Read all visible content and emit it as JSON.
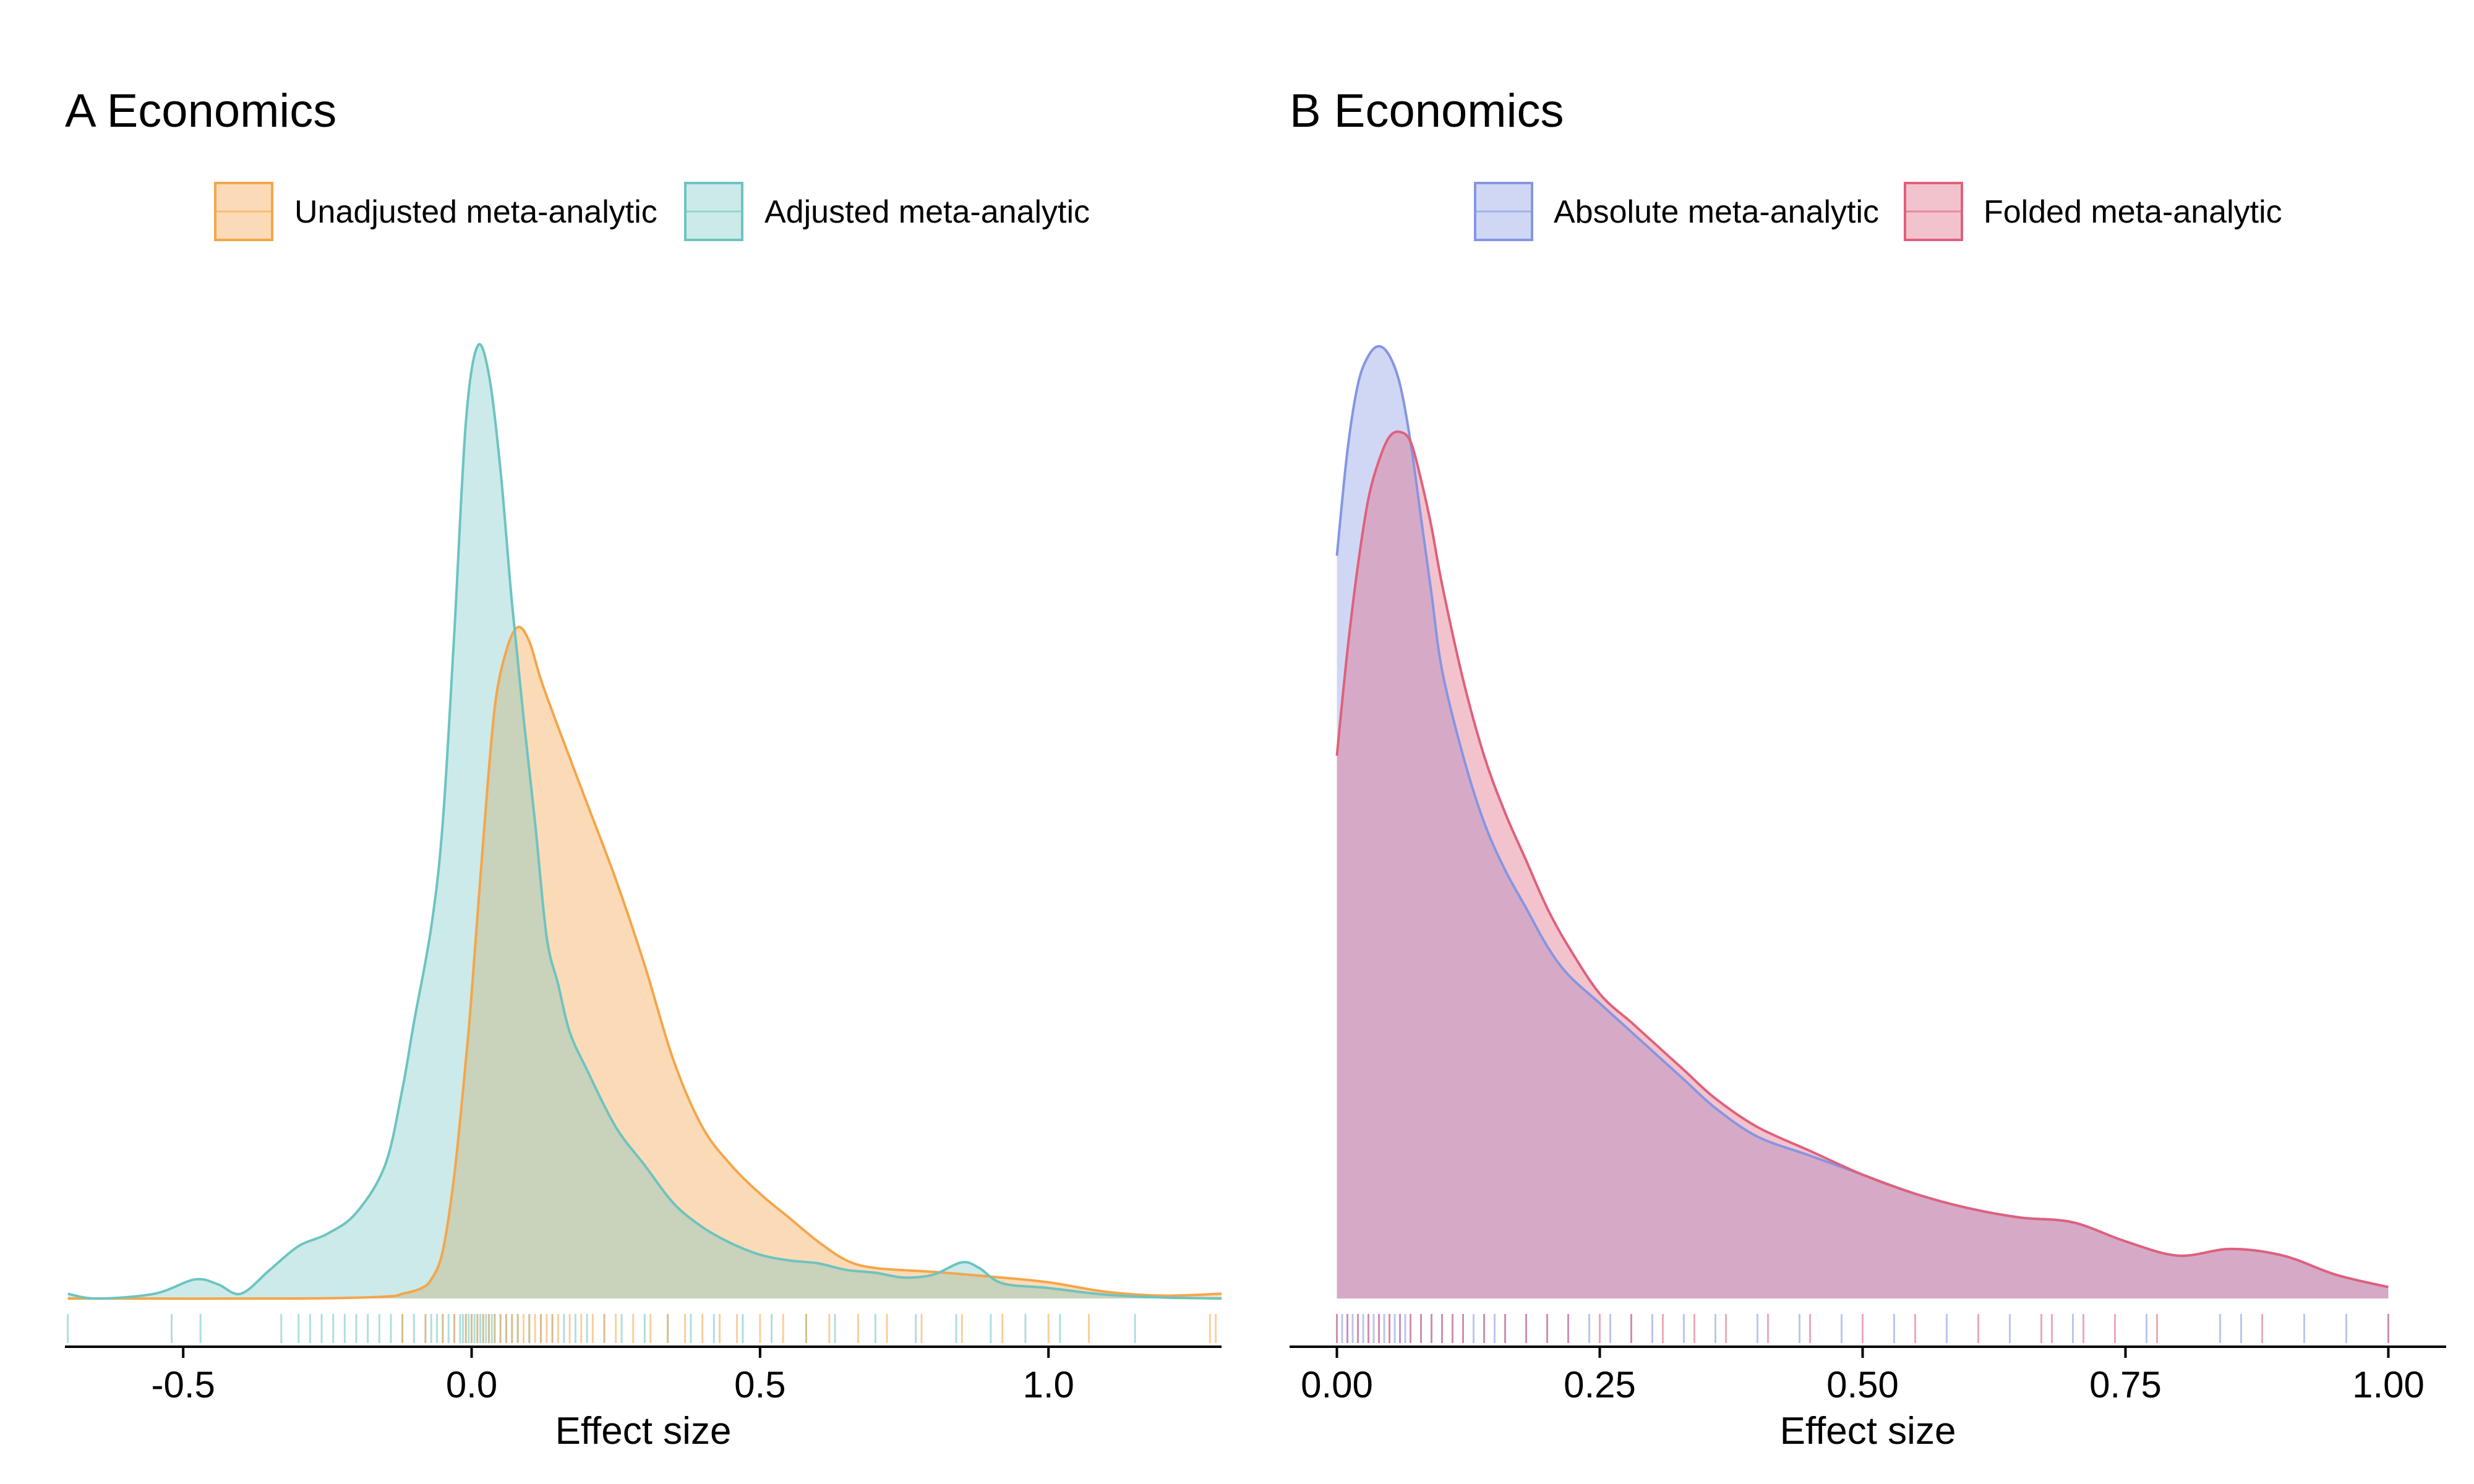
{
  "colors": {
    "unadjusted": "#F5A54A",
    "adjusted": "#6CC4C0",
    "absolute": "#8496E3",
    "folded": "#E0607B"
  },
  "chart_data": [
    {
      "type": "area",
      "subtype": "density-with-rug",
      "title": "A Economics",
      "xlabel": "Effect size",
      "ylabel": "",
      "xlim": [
        -0.705,
        1.3
      ],
      "ylim": [
        0,
        1
      ],
      "x_ticks": [
        -0.5,
        0.0,
        0.5,
        1.0
      ],
      "x_tick_labels": [
        "-0.5",
        "0.0",
        "0.5",
        "1.0"
      ],
      "y_axis_shown": false,
      "grid": false,
      "legend": {
        "position": "top",
        "entries": [
          "Unadjusted meta-analytic",
          "Adjusted meta-analytic"
        ]
      },
      "series": [
        {
          "name": "Unadjusted meta-analytic",
          "color_key": "unadjusted",
          "fill_opacity": 0.4,
          "points": [
            [
              -0.7,
              0.0
            ],
            [
              -0.3,
              0.0
            ],
            [
              -0.15,
              0.002
            ],
            [
              -0.12,
              0.005
            ],
            [
              -0.09,
              0.01
            ],
            [
              -0.07,
              0.02
            ],
            [
              -0.05,
              0.05
            ],
            [
              -0.03,
              0.13
            ],
            [
              -0.01,
              0.25
            ],
            [
              0.0,
              0.32
            ],
            [
              0.02,
              0.48
            ],
            [
              0.04,
              0.62
            ],
            [
              0.06,
              0.68
            ],
            [
              0.08,
              0.705
            ],
            [
              0.1,
              0.69
            ],
            [
              0.12,
              0.65
            ],
            [
              0.15,
              0.6
            ],
            [
              0.2,
              0.52
            ],
            [
              0.25,
              0.44
            ],
            [
              0.3,
              0.35
            ],
            [
              0.35,
              0.25
            ],
            [
              0.4,
              0.18
            ],
            [
              0.45,
              0.14
            ],
            [
              0.5,
              0.11
            ],
            [
              0.55,
              0.085
            ],
            [
              0.6,
              0.06
            ],
            [
              0.65,
              0.04
            ],
            [
              0.7,
              0.032
            ],
            [
              0.8,
              0.028
            ],
            [
              0.9,
              0.023
            ],
            [
              1.0,
              0.017
            ],
            [
              1.1,
              0.007
            ],
            [
              1.2,
              0.003
            ],
            [
              1.3,
              0.005
            ]
          ]
        },
        {
          "name": "Adjusted meta-analytic",
          "color_key": "adjusted",
          "fill_opacity": 0.35,
          "points": [
            [
              -0.7,
              0.005
            ],
            [
              -0.65,
              0.0
            ],
            [
              -0.55,
              0.005
            ],
            [
              -0.48,
              0.02
            ],
            [
              -0.44,
              0.015
            ],
            [
              -0.4,
              0.005
            ],
            [
              -0.35,
              0.03
            ],
            [
              -0.3,
              0.055
            ],
            [
              -0.25,
              0.068
            ],
            [
              -0.2,
              0.09
            ],
            [
              -0.15,
              0.14
            ],
            [
              -0.12,
              0.22
            ],
            [
              -0.1,
              0.29
            ],
            [
              -0.07,
              0.39
            ],
            [
              -0.05,
              0.5
            ],
            [
              -0.03,
              0.7
            ],
            [
              -0.01,
              0.92
            ],
            [
              0.01,
              1.0
            ],
            [
              0.03,
              0.97
            ],
            [
              0.05,
              0.87
            ],
            [
              0.07,
              0.73
            ],
            [
              0.09,
              0.61
            ],
            [
              0.11,
              0.5
            ],
            [
              0.13,
              0.38
            ],
            [
              0.15,
              0.33
            ],
            [
              0.17,
              0.28
            ],
            [
              0.2,
              0.24
            ],
            [
              0.25,
              0.18
            ],
            [
              0.3,
              0.14
            ],
            [
              0.35,
              0.1
            ],
            [
              0.4,
              0.075
            ],
            [
              0.45,
              0.058
            ],
            [
              0.5,
              0.046
            ],
            [
              0.55,
              0.04
            ],
            [
              0.6,
              0.037
            ],
            [
              0.65,
              0.03
            ],
            [
              0.7,
              0.027
            ],
            [
              0.75,
              0.022
            ],
            [
              0.8,
              0.025
            ],
            [
              0.85,
              0.038
            ],
            [
              0.88,
              0.032
            ],
            [
              0.92,
              0.016
            ],
            [
              1.0,
              0.011
            ],
            [
              1.1,
              0.004
            ],
            [
              1.2,
              0.001
            ],
            [
              1.3,
              0.0
            ]
          ]
        }
      ],
      "rug": [
        {
          "series": "Adjusted meta-analytic",
          "values": [
            -0.7,
            -0.52,
            -0.47,
            -0.33,
            -0.3,
            -0.28,
            -0.26,
            -0.24,
            -0.22,
            -0.2,
            -0.18,
            -0.16,
            -0.14,
            -0.12,
            -0.1,
            -0.08,
            -0.07,
            -0.06,
            -0.05,
            -0.04,
            -0.03,
            -0.02,
            -0.015,
            -0.01,
            -0.005,
            0.0,
            0.005,
            0.01,
            0.015,
            0.02,
            0.025,
            0.03,
            0.035,
            0.04,
            0.05,
            0.06,
            0.07,
            0.08,
            0.1,
            0.12,
            0.14,
            0.16,
            0.18,
            0.2,
            0.23,
            0.26,
            0.3,
            0.34,
            0.38,
            0.42,
            0.47,
            0.52,
            0.58,
            0.63,
            0.7,
            0.77,
            0.84,
            0.9,
            0.96,
            1.02,
            1.15
          ]
        },
        {
          "series": "Unadjusted meta-analytic",
          "values": [
            -0.12,
            -0.08,
            -0.05,
            -0.03,
            -0.01,
            0.0,
            0.01,
            0.02,
            0.03,
            0.04,
            0.05,
            0.06,
            0.07,
            0.08,
            0.09,
            0.1,
            0.11,
            0.12,
            0.13,
            0.14,
            0.15,
            0.17,
            0.19,
            0.21,
            0.23,
            0.25,
            0.28,
            0.31,
            0.34,
            0.37,
            0.4,
            0.43,
            0.46,
            0.5,
            0.54,
            0.58,
            0.62,
            0.67,
            0.72,
            0.78,
            0.85,
            0.92,
            1.0,
            1.07,
            1.28,
            1.29
          ]
        }
      ]
    },
    {
      "type": "area",
      "subtype": "density-with-rug",
      "title": "B Economics",
      "xlabel": "Effect size",
      "ylabel": "",
      "xlim": [
        -0.045,
        1.055
      ],
      "ylim": [
        0,
        1
      ],
      "x_ticks": [
        0.0,
        0.25,
        0.5,
        0.75,
        1.0
      ],
      "x_tick_labels": [
        "0.00",
        "0.25",
        "0.50",
        "0.75",
        "1.00"
      ],
      "y_axis_shown": false,
      "grid": false,
      "legend": {
        "position": "top",
        "entries": [
          "Absolute meta-analytic",
          "Folded meta-analytic"
        ]
      },
      "series": [
        {
          "name": "Absolute meta-analytic",
          "color_key": "absolute",
          "fill_opacity": 0.38,
          "points": [
            [
              0.0,
              0.78
            ],
            [
              0.01,
              0.89
            ],
            [
              0.02,
              0.96
            ],
            [
              0.03,
              0.99
            ],
            [
              0.04,
              1.0
            ],
            [
              0.05,
              0.99
            ],
            [
              0.06,
              0.96
            ],
            [
              0.07,
              0.9
            ],
            [
              0.08,
              0.82
            ],
            [
              0.09,
              0.74
            ],
            [
              0.1,
              0.66
            ],
            [
              0.12,
              0.57
            ],
            [
              0.14,
              0.5
            ],
            [
              0.16,
              0.45
            ],
            [
              0.18,
              0.41
            ],
            [
              0.2,
              0.37
            ],
            [
              0.22,
              0.34
            ],
            [
              0.25,
              0.31
            ],
            [
              0.28,
              0.28
            ],
            [
              0.3,
              0.26
            ],
            [
              0.33,
              0.23
            ],
            [
              0.36,
              0.2
            ],
            [
              0.4,
              0.17
            ],
            [
              0.45,
              0.15
            ],
            [
              0.5,
              0.13
            ],
            [
              0.55,
              0.11
            ],
            [
              0.6,
              0.095
            ],
            [
              0.65,
              0.085
            ],
            [
              0.7,
              0.08
            ],
            [
              0.75,
              0.06
            ],
            [
              0.8,
              0.045
            ],
            [
              0.85,
              0.052
            ],
            [
              0.9,
              0.045
            ],
            [
              0.95,
              0.025
            ],
            [
              1.0,
              0.012
            ]
          ]
        },
        {
          "name": "Folded meta-analytic",
          "color_key": "folded",
          "fill_opacity": 0.38,
          "points": [
            [
              0.0,
              0.57
            ],
            [
              0.01,
              0.68
            ],
            [
              0.02,
              0.77
            ],
            [
              0.03,
              0.84
            ],
            [
              0.04,
              0.88
            ],
            [
              0.05,
              0.905
            ],
            [
              0.06,
              0.91
            ],
            [
              0.07,
              0.9
            ],
            [
              0.08,
              0.86
            ],
            [
              0.09,
              0.81
            ],
            [
              0.1,
              0.75
            ],
            [
              0.12,
              0.65
            ],
            [
              0.14,
              0.57
            ],
            [
              0.16,
              0.51
            ],
            [
              0.18,
              0.46
            ],
            [
              0.2,
              0.41
            ],
            [
              0.22,
              0.37
            ],
            [
              0.25,
              0.32
            ],
            [
              0.28,
              0.29
            ],
            [
              0.3,
              0.27
            ],
            [
              0.33,
              0.24
            ],
            [
              0.36,
              0.21
            ],
            [
              0.4,
              0.18
            ],
            [
              0.45,
              0.155
            ],
            [
              0.5,
              0.13
            ],
            [
              0.55,
              0.11
            ],
            [
              0.6,
              0.095
            ],
            [
              0.65,
              0.085
            ],
            [
              0.7,
              0.08
            ],
            [
              0.75,
              0.06
            ],
            [
              0.8,
              0.045
            ],
            [
              0.85,
              0.052
            ],
            [
              0.9,
              0.045
            ],
            [
              0.95,
              0.025
            ],
            [
              1.0,
              0.012
            ]
          ]
        }
      ],
      "rug": [
        {
          "series": "Absolute meta-analytic",
          "values": [
            0.0,
            0.005,
            0.01,
            0.015,
            0.02,
            0.025,
            0.03,
            0.035,
            0.04,
            0.045,
            0.05,
            0.055,
            0.06,
            0.065,
            0.07,
            0.08,
            0.09,
            0.1,
            0.11,
            0.12,
            0.13,
            0.14,
            0.15,
            0.16,
            0.18,
            0.2,
            0.22,
            0.24,
            0.26,
            0.28,
            0.3,
            0.33,
            0.36,
            0.4,
            0.44,
            0.48,
            0.53,
            0.58,
            0.64,
            0.7,
            0.77,
            0.84,
            0.86,
            0.92,
            0.96,
            1.0
          ]
        },
        {
          "series": "Folded meta-analytic",
          "values": [
            0.0,
            0.01,
            0.02,
            0.03,
            0.04,
            0.05,
            0.06,
            0.07,
            0.08,
            0.09,
            0.1,
            0.11,
            0.12,
            0.14,
            0.16,
            0.18,
            0.2,
            0.22,
            0.25,
            0.28,
            0.31,
            0.34,
            0.37,
            0.41,
            0.45,
            0.5,
            0.55,
            0.61,
            0.67,
            0.68,
            0.71,
            0.74,
            0.78,
            0.88,
            1.0
          ]
        }
      ]
    }
  ]
}
